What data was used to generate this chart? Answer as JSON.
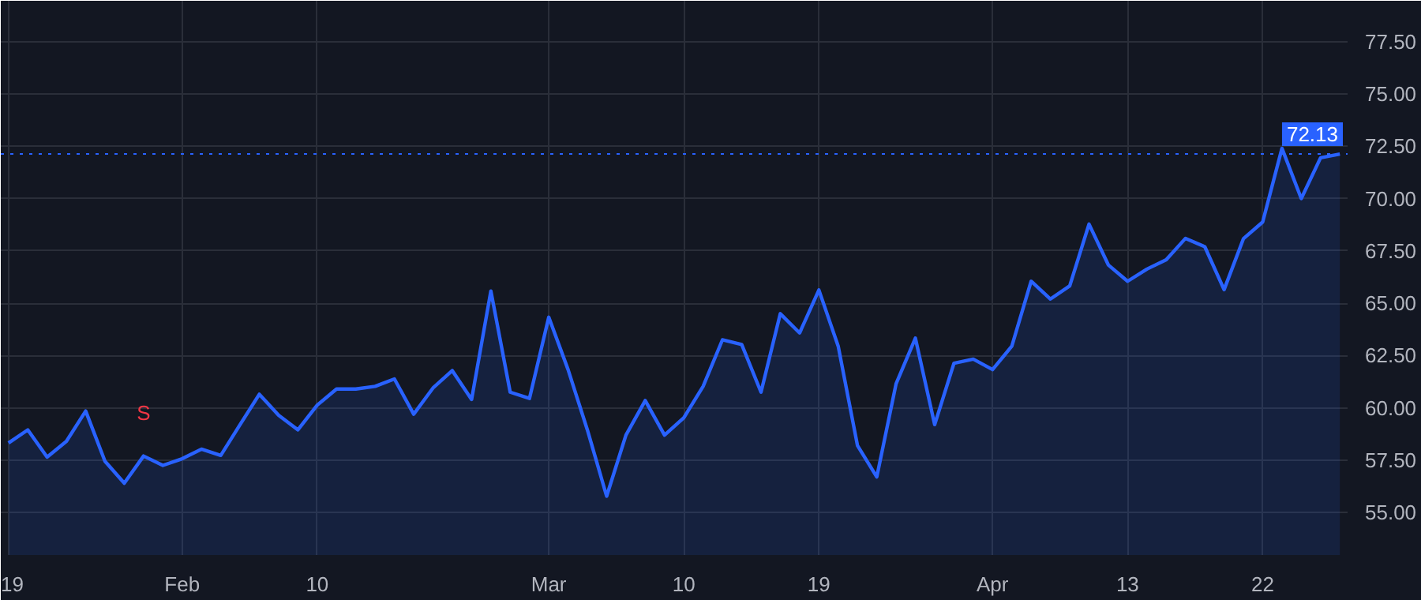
{
  "chart_data": {
    "type": "area",
    "categories": [
      "19",
      null,
      null,
      null,
      null,
      null,
      null,
      null,
      null,
      "Feb",
      null,
      null,
      null,
      null,
      null,
      null,
      "10",
      null,
      null,
      null,
      null,
      null,
      null,
      null,
      null,
      null,
      null,
      null,
      "Mar",
      null,
      null,
      null,
      null,
      null,
      null,
      "10",
      null,
      null,
      null,
      null,
      null,
      null,
      "19",
      null,
      null,
      null,
      null,
      null,
      null,
      null,
      null,
      "Apr",
      null,
      null,
      null,
      null,
      null,
      null,
      "13",
      null,
      null,
      null,
      null,
      null,
      null,
      "22",
      null,
      null,
      null,
      null
    ],
    "series": [
      {
        "color": "#2962ff",
        "values": [
          58.32,
          58.95,
          57.65,
          58.4,
          59.85,
          57.45,
          56.4,
          57.7,
          57.25,
          57.57,
          58.03,
          57.73,
          59.2,
          60.65,
          59.65,
          58.95,
          60.13,
          60.9,
          60.9,
          61.03,
          61.38,
          59.7,
          60.95,
          61.78,
          60.4,
          65.58,
          60.75,
          60.45,
          64.33,
          61.83,
          58.95,
          55.78,
          58.7,
          60.35,
          58.7,
          59.53,
          61.03,
          63.25,
          63.03,
          60.75,
          64.5,
          63.58,
          65.63,
          62.95,
          58.2,
          56.7,
          61.15,
          63.33,
          59.2,
          62.13,
          62.33,
          61.83,
          62.95,
          66.05,
          65.2,
          65.83,
          68.78,
          66.83,
          66.05,
          66.63,
          67.08,
          68.1,
          67.7,
          65.65,
          68.08,
          68.88,
          72.4,
          70.0,
          71.95,
          72.13
        ]
      }
    ],
    "ylim": [
      52.97,
      79.45
    ],
    "yticks": [
      {
        "value": 55,
        "label": "55.00"
      },
      {
        "value": 57.5,
        "label": "57.50"
      },
      {
        "value": 60,
        "label": "60.00"
      },
      {
        "value": 62.5,
        "label": "62.50"
      },
      {
        "value": 65,
        "label": "65.00"
      },
      {
        "value": 67.5,
        "label": "67.50"
      },
      {
        "value": 70,
        "label": "70.00"
      },
      {
        "value": 72.5,
        "label": "72.50"
      },
      {
        "value": 75,
        "label": "75.00"
      },
      {
        "value": 77.5,
        "label": "77.50"
      }
    ],
    "grid": true,
    "ref_lines": [
      {
        "axis": "y",
        "value": 72.13,
        "label": "72.13",
        "color": "#2962ff",
        "line_style": "dotted"
      }
    ],
    "annotations": [
      {
        "text": "S",
        "y": 57.7
      }
    ]
  }
}
